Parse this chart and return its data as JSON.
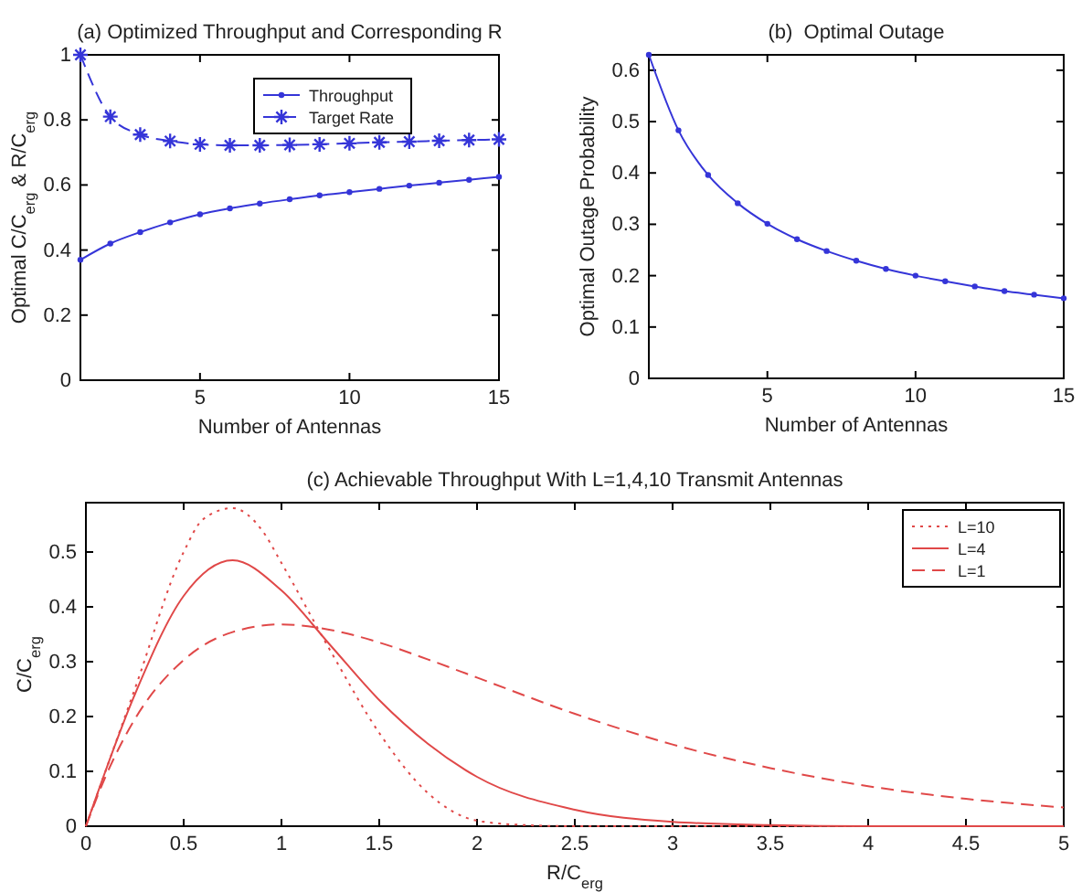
{
  "chart_data": [
    {
      "type": "line",
      "title": "(a) Optimized Throughput and Corresponding R",
      "xlabel": "Number of Antennas",
      "ylabel": "Optimal C/C$_{erg}$ & R/C$_{erg}$",
      "x": [
        1,
        2,
        3,
        4,
        5,
        6,
        7,
        8,
        9,
        10,
        11,
        12,
        13,
        14,
        15
      ],
      "xlim": [
        1,
        15
      ],
      "xticks": [
        5,
        10,
        15
      ],
      "ylim": [
        0,
        1
      ],
      "yticks": [
        0,
        0.2,
        0.4,
        0.6,
        0.8,
        1
      ],
      "legend": "top right",
      "grid": false,
      "series": [
        {
          "name": "Throughput",
          "color": "#3535d8",
          "marker": "circle",
          "line_style": "solid",
          "values": [
            0.37,
            0.42,
            0.455,
            0.485,
            0.51,
            0.528,
            0.543,
            0.556,
            0.568,
            0.578,
            0.588,
            0.598,
            0.607,
            0.616,
            0.625
          ]
        },
        {
          "name": "Target Rate",
          "color": "#3535d8",
          "marker": "cross",
          "line_style": "dashed",
          "values": [
            1.0,
            0.81,
            0.755,
            0.735,
            0.725,
            0.722,
            0.722,
            0.723,
            0.725,
            0.728,
            0.731,
            0.733,
            0.736,
            0.738,
            0.74
          ]
        }
      ]
    },
    {
      "type": "line",
      "title": "(b)  Optimal Outage",
      "xlabel": "Number of Antennas",
      "ylabel": "Optimal Outage Probability",
      "x": [
        1,
        2,
        3,
        4,
        5,
        6,
        7,
        8,
        9,
        10,
        11,
        12,
        13,
        14,
        15
      ],
      "xlim": [
        1,
        15
      ],
      "xticks": [
        5,
        10,
        15
      ],
      "ylim": [
        0,
        0.63
      ],
      "yticks": [
        0,
        0.1,
        0.2,
        0.3,
        0.4,
        0.5,
        0.6
      ],
      "legend": false,
      "grid": false,
      "marker": "circle",
      "line_style": "solid",
      "series": [
        {
          "color": "#3535d8",
          "values": [
            0.63,
            0.483,
            0.396,
            0.341,
            0.301,
            0.271,
            0.248,
            0.229,
            0.213,
            0.2,
            0.189,
            0.179,
            0.17,
            0.163,
            0.156
          ]
        }
      ]
    },
    {
      "type": "line",
      "title": "(c) Achievable Throughput With L=1,4,10 Transmit Antennas",
      "xlabel": "R/C$_{erg}$",
      "ylabel": "C/C$_{erg}$",
      "xlim": [
        0,
        5
      ],
      "xticks": [
        0,
        0.5,
        1,
        1.5,
        2,
        2.5,
        3,
        3.5,
        4,
        4.5,
        5
      ],
      "ylim": [
        0,
        0.59
      ],
      "yticks": [
        0,
        0.1,
        0.2,
        0.3,
        0.4,
        0.5
      ],
      "legend": "top right",
      "grid": false,
      "marker": "none",
      "series": [
        {
          "name": "L=10",
          "color": "#e04848",
          "line_style": "dotted",
          "x": [
            0,
            0.25,
            0.5,
            0.6,
            0.75,
            0.9,
            1,
            1.25,
            1.5,
            1.75,
            2,
            2.25,
            2.5,
            3,
            4,
            5
          ],
          "values": [
            0,
            0.25,
            0.5,
            0.56,
            0.58,
            0.54,
            0.48,
            0.32,
            0.17,
            0.06,
            0.01,
            0.002,
            0,
            0,
            0,
            0
          ]
        },
        {
          "name": "L=4",
          "color": "#e04848",
          "line_style": "solid",
          "x": [
            0,
            0.25,
            0.5,
            0.75,
            1,
            1.25,
            1.5,
            1.75,
            2,
            2.5,
            3,
            3.5,
            4,
            5
          ],
          "values": [
            0,
            0.24,
            0.42,
            0.485,
            0.43,
            0.33,
            0.23,
            0.15,
            0.09,
            0.03,
            0.008,
            0.002,
            0,
            0
          ]
        },
        {
          "name": "L=1",
          "color": "#e04848",
          "line_style": "dashed",
          "x": [
            0,
            0.1,
            0.25,
            0.5,
            0.75,
            1,
            1.25,
            1.5,
            1.75,
            2,
            2.5,
            3,
            3.5,
            4,
            4.5,
            5
          ],
          "values": [
            0,
            0.09,
            0.195,
            0.303,
            0.354,
            0.368,
            0.358,
            0.335,
            0.304,
            0.271,
            0.205,
            0.149,
            0.106,
            0.073,
            0.05,
            0.034
          ]
        }
      ]
    }
  ]
}
